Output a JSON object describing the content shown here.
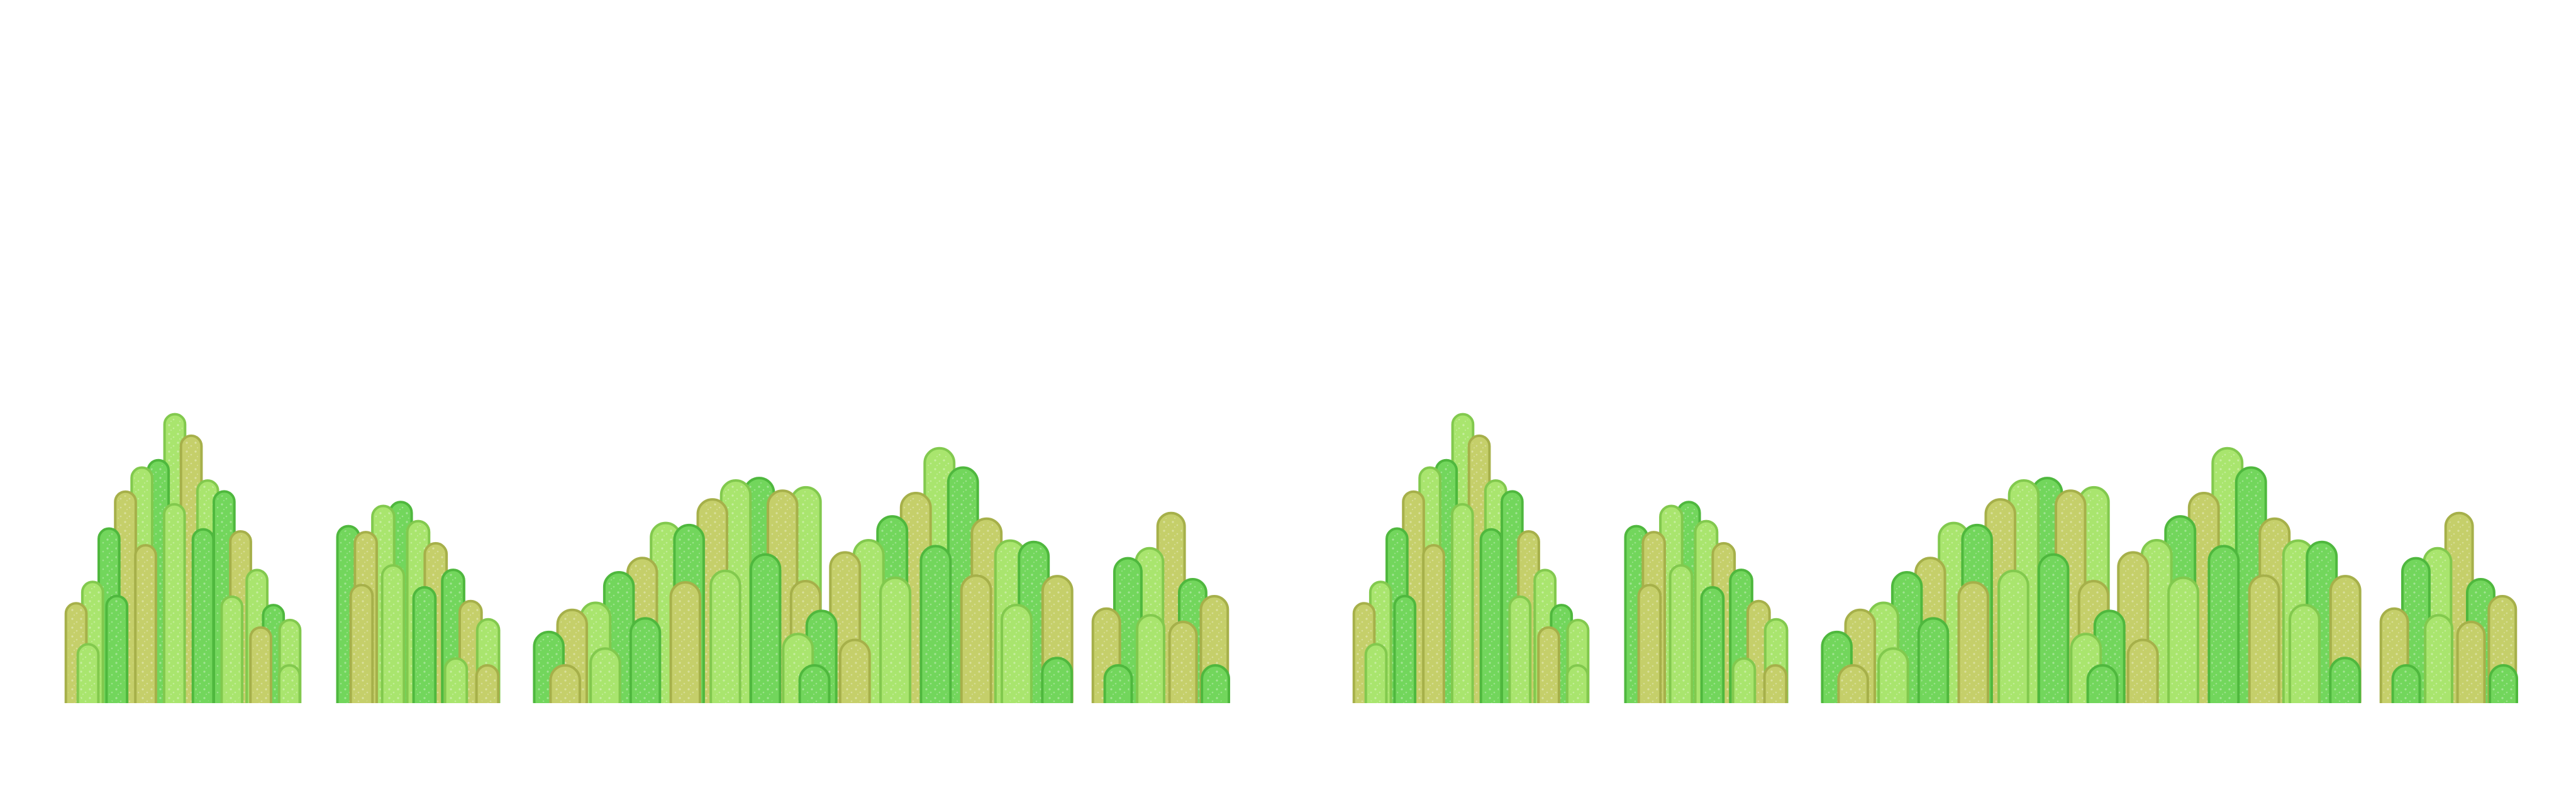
{
  "scene": {
    "kind": "tileable grass / bush sprite strip",
    "background": "#ffffff",
    "repeats": 2,
    "clusters_per_repeat": 5
  },
  "palette": {
    "yellow_green_fill": "#c5cf6a",
    "yellow_green_stroke": "#a6b04a",
    "lime_fill": "#a9e56e",
    "lime_stroke": "#82c94e",
    "green_fill": "#72d65c",
    "green_stroke": "#4fb83e",
    "speckle": "#ffffff"
  },
  "clusters": [
    {
      "name": "bush-cluster-1",
      "blades": 26
    },
    {
      "name": "bush-cluster-2",
      "blades": 16
    },
    {
      "name": "bush-cluster-3",
      "blades": 36
    },
    {
      "name": "bush-cluster-4",
      "blades": 26
    },
    {
      "name": "bush-cluster-5",
      "blades": 8
    }
  ]
}
